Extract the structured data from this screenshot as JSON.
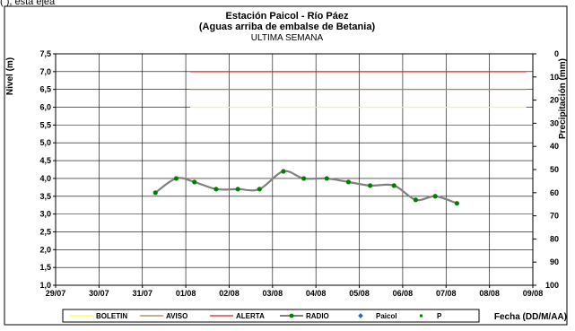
{
  "header_fragment": "(                          ),  esta                           ejea",
  "chart_data": {
    "type": "line",
    "title": "Estación Paicol - Río Páez",
    "subtitle": "(Aguas arriba de embalse de Betania)",
    "subtitle2": "ULTIMA SEMANA",
    "ylabel": "Nivel (m)",
    "y2label": "Precipitación (mm)",
    "xlabel": "Fecha (DD/M/AA)",
    "ylim": [
      1.0,
      7.5
    ],
    "y2lim": [
      0,
      100
    ],
    "grid": true,
    "y_ticks": [
      "1,0",
      "1,5",
      "2,0",
      "2,5",
      "3,0",
      "3,5",
      "4,0",
      "4,5",
      "5,0",
      "5,5",
      "6,0",
      "6,5",
      "7,0",
      "7,5"
    ],
    "y2_ticks": [
      "100",
      "90",
      "80",
      "70",
      "60",
      "50",
      "40",
      "30",
      "20",
      "10",
      "0"
    ],
    "x_ticks": [
      "29/07",
      "30/07",
      "31/07",
      "01/08",
      "02/08",
      "03/08",
      "04/08",
      "05/08",
      "06/08",
      "07/08",
      "08/08",
      "09/08"
    ],
    "thresholds": [
      {
        "name": "BOLETIN",
        "value": 6.0,
        "x_start": 3.1,
        "x_end": 10.85,
        "color": "#ffff33"
      },
      {
        "name": "AVISO",
        "value": 6.5,
        "x_start": 3.1,
        "x_end": 10.85,
        "color": "#a08050"
      },
      {
        "name": "ALERTA",
        "value": 7.0,
        "x_start": 3.1,
        "x_end": 10.85,
        "color": "#dd2222"
      }
    ],
    "series": [
      {
        "name": "RADIO",
        "color": "#808080",
        "marker_color": "#008000",
        "x": [
          2.3,
          2.78,
          3.2,
          3.7,
          4.2,
          4.7,
          5.25,
          5.72,
          6.25,
          6.75,
          7.25,
          7.8,
          8.3,
          8.75,
          9.25
        ],
        "values": [
          3.6,
          4.0,
          3.9,
          3.7,
          3.7,
          3.7,
          4.2,
          4.0,
          4.0,
          3.9,
          3.8,
          3.8,
          3.4,
          3.5,
          3.3
        ]
      }
    ],
    "legend": [
      "BOLETIN",
      "AVISO",
      "ALERTA",
      "RADIO",
      "Paicol",
      "P"
    ],
    "legend_position": "bottom"
  }
}
